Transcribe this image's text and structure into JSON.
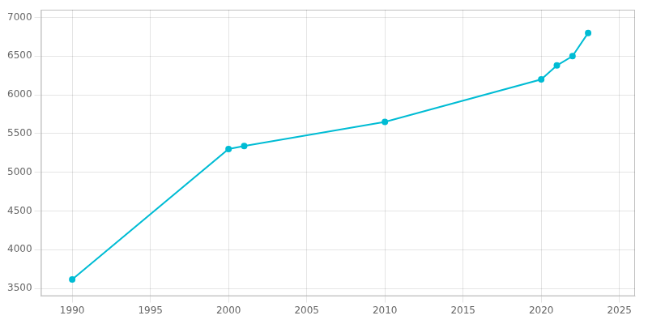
{
  "chart_data": {
    "type": "line",
    "x": [
      1990,
      2000,
      2001,
      2010,
      2020,
      2021,
      2022,
      2023
    ],
    "values": [
      3615,
      5300,
      5340,
      5650,
      6200,
      6380,
      6500,
      6800
    ],
    "color": "#00BCD4",
    "marker": "o",
    "xlim": [
      1988,
      2026
    ],
    "ylim": [
      3400,
      7100
    ],
    "xticks": [
      1990,
      1995,
      2000,
      2005,
      2010,
      2015,
      2020,
      2025
    ],
    "yticks": [
      3500,
      4000,
      4500,
      5000,
      5500,
      6000,
      6500,
      7000
    ],
    "grid": true
  }
}
